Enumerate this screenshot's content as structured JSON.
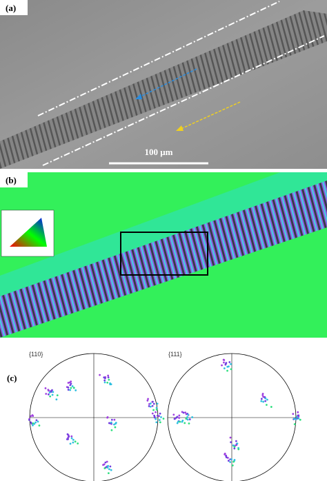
{
  "panels": {
    "a": {
      "label": "(a)",
      "scale_bar": "100 μm"
    },
    "b": {
      "label": "(b)"
    },
    "c": {
      "label": "(c)",
      "pole_figures": [
        "{110}",
        "{111}"
      ]
    }
  }
}
